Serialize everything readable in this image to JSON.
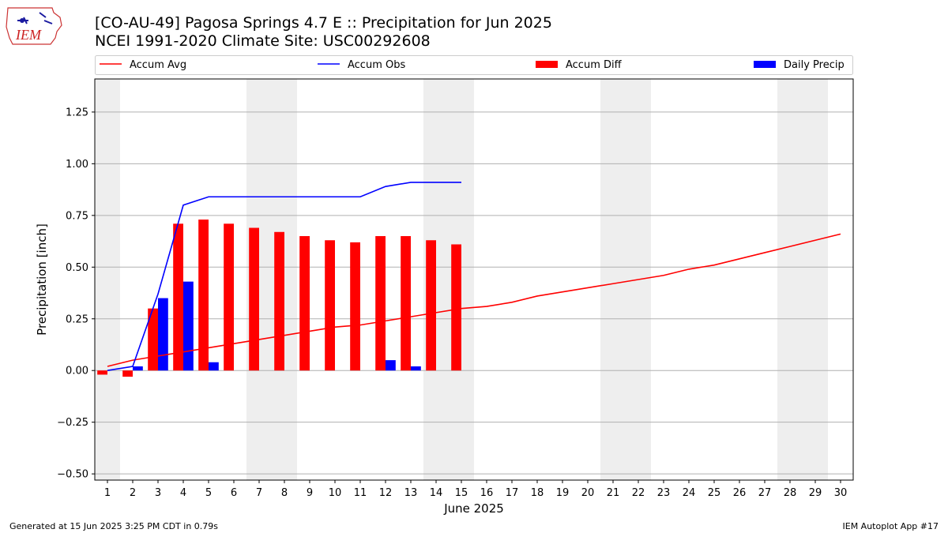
{
  "header": {
    "title_line1": "[CO-AU-49] Pagosa Springs 4.7 E :: Precipitation for Jun 2025",
    "title_line2": "NCEI 1991-2020 Climate Site: USC00292608"
  },
  "logo": {
    "text": "IEM",
    "icon": "iem-iowa-logo"
  },
  "footer": {
    "left": "Generated at 15 Jun 2025 3:25 PM CDT in 0.79s",
    "right": "IEM Autoplot App #17"
  },
  "colors": {
    "avg": "#ff0000",
    "obs": "#0000ff",
    "diff": "#ff0000",
    "daily": "#0000ff",
    "weekend": "#eeeeee",
    "grid": "#b0b0b0"
  },
  "chart_data": {
    "type": "bar",
    "xlabel": "June 2025",
    "ylabel": "Precipitation [inch]",
    "xlim": [
      0.5,
      30.5
    ],
    "ylim": [
      -0.53,
      1.41
    ],
    "grid": true,
    "legend_position": "top",
    "days": [
      1,
      2,
      3,
      4,
      5,
      6,
      7,
      8,
      9,
      10,
      11,
      12,
      13,
      14,
      15,
      16,
      17,
      18,
      19,
      20,
      21,
      22,
      23,
      24,
      25,
      26,
      27,
      28,
      29,
      30
    ],
    "yticks": [
      -0.5,
      -0.25,
      0.0,
      0.25,
      0.5,
      0.75,
      1.0,
      1.25
    ],
    "ytick_labels": [
      "−0.50",
      "−0.25",
      "0.00",
      "0.25",
      "0.50",
      "0.75",
      "1.00",
      "1.25"
    ],
    "weekends": [
      [
        0.5,
        1.5
      ],
      [
        6.5,
        8.5
      ],
      [
        13.5,
        15.5
      ],
      [
        20.5,
        22.5
      ],
      [
        27.5,
        29.5
      ]
    ],
    "series": [
      {
        "name": "Accum Avg",
        "kind": "line",
        "x": [
          1,
          2,
          3,
          4,
          5,
          6,
          7,
          8,
          9,
          10,
          11,
          12,
          13,
          14,
          15,
          16,
          17,
          18,
          19,
          20,
          21,
          22,
          23,
          24,
          25,
          26,
          27,
          28,
          29,
          30
        ],
        "values": [
          0.02,
          0.05,
          0.07,
          0.09,
          0.11,
          0.13,
          0.15,
          0.17,
          0.19,
          0.21,
          0.22,
          0.24,
          0.26,
          0.28,
          0.3,
          0.31,
          0.33,
          0.36,
          0.38,
          0.4,
          0.42,
          0.44,
          0.46,
          0.49,
          0.51,
          0.54,
          0.57,
          0.6,
          0.63,
          0.66
        ]
      },
      {
        "name": "Accum Obs",
        "kind": "line",
        "x": [
          1,
          2,
          3,
          4,
          5,
          6,
          7,
          8,
          9,
          10,
          11,
          12,
          13,
          14,
          15
        ],
        "values": [
          0.0,
          0.02,
          0.37,
          0.8,
          0.84,
          0.84,
          0.84,
          0.84,
          0.84,
          0.84,
          0.84,
          0.89,
          0.91,
          0.91,
          0.91
        ]
      },
      {
        "name": "Accum Diff",
        "kind": "bar",
        "x": [
          1,
          2,
          3,
          4,
          5,
          6,
          7,
          8,
          9,
          10,
          11,
          12,
          13,
          14,
          15
        ],
        "values": [
          -0.02,
          -0.03,
          0.3,
          0.71,
          0.73,
          0.71,
          0.69,
          0.67,
          0.65,
          0.63,
          0.62,
          0.65,
          0.65,
          0.63,
          0.61
        ]
      },
      {
        "name": "Daily Precip",
        "kind": "bar",
        "x": [
          1,
          2,
          3,
          4,
          5,
          6,
          7,
          8,
          9,
          10,
          11,
          12,
          13,
          14,
          15
        ],
        "values": [
          0.0,
          0.02,
          0.35,
          0.43,
          0.04,
          0.0,
          0.0,
          0.0,
          0.0,
          0.0,
          0.0,
          0.05,
          0.02,
          0.0,
          0.0
        ]
      }
    ]
  }
}
